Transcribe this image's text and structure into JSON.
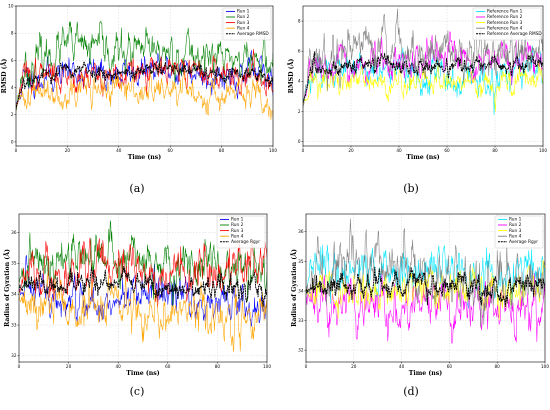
{
  "chart_data": [
    {
      "id": "a",
      "panel_label": "(a)",
      "type": "line",
      "xlabel": "Time (ns)",
      "ylabel": "RMSD (Å)",
      "xlim": [
        0,
        100
      ],
      "ylim": [
        -0.3,
        10
      ],
      "xticks": [
        0,
        20,
        40,
        60,
        80,
        100
      ],
      "yticks": [
        0,
        2,
        4,
        6,
        8,
        10
      ],
      "grid": true,
      "legend_position": "top-right",
      "series": [
        {
          "name": "Run 1",
          "color": "#0000ff",
          "init": 2.5,
          "mean": 5.0,
          "noise": 0.6,
          "seed": 11,
          "samples": [
            [
              5,
              4.6
            ],
            [
              20,
              5.2
            ],
            [
              40,
              5.0
            ],
            [
              60,
              5.3
            ],
            [
              80,
              5.0
            ],
            [
              100,
              4.9
            ]
          ]
        },
        {
          "name": "Run 2",
          "color": "#008000",
          "init": 2.5,
          "mean": 6.3,
          "noise": 0.8,
          "seed": 23,
          "samples": [
            [
              5,
              5.6
            ],
            [
              20,
              7.0
            ],
            [
              40,
              6.5
            ],
            [
              60,
              6.6
            ],
            [
              80,
              6.2
            ],
            [
              100,
              5.8
            ]
          ]
        },
        {
          "name": "Run 3",
          "color": "#ff0000",
          "init": 2.5,
          "mean": 5.0,
          "noise": 0.6,
          "seed": 37,
          "samples": [
            [
              5,
              4.8
            ],
            [
              20,
              5.0
            ],
            [
              40,
              4.9
            ],
            [
              60,
              5.2
            ],
            [
              80,
              5.1
            ],
            [
              100,
              4.6
            ]
          ]
        },
        {
          "name": "Run 4",
          "color": "#ffa500",
          "init": 2.5,
          "mean": 3.6,
          "noise": 0.6,
          "seed": 41,
          "samples": [
            [
              5,
              3.5
            ],
            [
              20,
              4.0
            ],
            [
              40,
              3.8
            ],
            [
              60,
              3.7
            ],
            [
              80,
              3.5
            ],
            [
              100,
              3.2
            ]
          ]
        },
        {
          "name": "Average RMSD",
          "color": "#000000",
          "dashed": true,
          "init": 2.5,
          "mean": 5.0,
          "noise": 0.3,
          "seed": 53,
          "samples": [
            [
              5,
              4.6
            ],
            [
              20,
              5.3
            ],
            [
              40,
              5.1
            ],
            [
              60,
              5.3
            ],
            [
              80,
              5.0
            ],
            [
              100,
              4.8
            ]
          ]
        }
      ]
    },
    {
      "id": "b",
      "panel_label": "(b)",
      "type": "line",
      "xlabel": "Time (ns)",
      "ylabel": "RMSD (Å)",
      "xlim": [
        0,
        100
      ],
      "ylim": [
        -0.3,
        9
      ],
      "xticks": [
        0,
        20,
        40,
        60,
        80,
        100
      ],
      "yticks": [
        0,
        2,
        4,
        6,
        8
      ],
      "grid": true,
      "legend_position": "top-right",
      "series": [
        {
          "name": "Reference Run 1",
          "color": "#00e5ff",
          "init": 2.5,
          "mean": 4.6,
          "noise": 0.6,
          "seed": 61,
          "samples": [
            [
              5,
              4.4
            ],
            [
              20,
              5.0
            ],
            [
              40,
              4.8
            ],
            [
              60,
              4.3
            ],
            [
              80,
              4.0
            ],
            [
              100,
              4.8
            ]
          ]
        },
        {
          "name": "Reference Run 2",
          "color": "#ff00ff",
          "init": 2.5,
          "mean": 5.0,
          "noise": 0.6,
          "seed": 67,
          "samples": [
            [
              5,
              4.7
            ],
            [
              20,
              4.9
            ],
            [
              40,
              5.1
            ],
            [
              60,
              5.3
            ],
            [
              80,
              5.1
            ],
            [
              100,
              5.5
            ]
          ]
        },
        {
          "name": "Reference Run 3",
          "color": "#ffff00",
          "init": 2.5,
          "mean": 3.9,
          "noise": 0.5,
          "seed": 71,
          "samples": [
            [
              5,
              4.0
            ],
            [
              20,
              3.8
            ],
            [
              40,
              3.9
            ],
            [
              60,
              4.0
            ],
            [
              80,
              3.9
            ],
            [
              100,
              4.2
            ]
          ]
        },
        {
          "name": "Reference Run 4",
          "color": "#808080",
          "init": 2.5,
          "mean": 5.8,
          "noise": 0.8,
          "seed": 79,
          "samples": [
            [
              5,
              5.0
            ],
            [
              20,
              6.8
            ],
            [
              40,
              6.2
            ],
            [
              60,
              6.0
            ],
            [
              80,
              5.6
            ],
            [
              100,
              5.8
            ]
          ]
        },
        {
          "name": "Reference Average RMSD",
          "color": "#000000",
          "dashed": true,
          "init": 2.5,
          "mean": 4.9,
          "noise": 0.3,
          "seed": 83,
          "samples": [
            [
              5,
              4.6
            ],
            [
              20,
              5.2
            ],
            [
              40,
              5.0
            ],
            [
              60,
              5.0
            ],
            [
              80,
              5.0
            ],
            [
              100,
              5.3
            ]
          ]
        }
      ]
    },
    {
      "id": "c",
      "panel_label": "(c)",
      "type": "line",
      "xlabel": "Time (ns)",
      "ylabel": "Radius of Gyration (Å)",
      "xlim": [
        0,
        100
      ],
      "ylim": [
        31.8,
        36.6
      ],
      "xticks": [
        0,
        20,
        40,
        60,
        80,
        100
      ],
      "yticks": [
        32,
        33,
        34,
        35,
        36
      ],
      "grid": true,
      "legend_position": "top-right",
      "series": [
        {
          "name": "Run 1",
          "color": "#0000ff",
          "init": 34.0,
          "mean": 33.8,
          "noise": 0.35,
          "seed": 97,
          "samples": [
            [
              5,
              34.0
            ],
            [
              20,
              33.6
            ],
            [
              40,
              33.8
            ],
            [
              60,
              34.0
            ],
            [
              80,
              33.7
            ],
            [
              100,
              33.6
            ]
          ]
        },
        {
          "name": "Run 2",
          "color": "#008000",
          "init": 34.5,
          "mean": 35.1,
          "noise": 0.4,
          "seed": 101,
          "samples": [
            [
              5,
              34.8
            ],
            [
              20,
              35.3
            ],
            [
              40,
              35.2
            ],
            [
              60,
              35.0
            ],
            [
              80,
              34.9
            ],
            [
              100,
              34.9
            ]
          ]
        },
        {
          "name": "Run 3",
          "color": "#ff0000",
          "init": 34.3,
          "mean": 34.8,
          "noise": 0.4,
          "seed": 103,
          "samples": [
            [
              5,
              34.6
            ],
            [
              20,
              34.8
            ],
            [
              40,
              34.9
            ],
            [
              60,
              34.6
            ],
            [
              80,
              34.8
            ],
            [
              100,
              35.0
            ]
          ]
        },
        {
          "name": "Run 4",
          "color": "#ffa500",
          "init": 33.9,
          "mean": 33.5,
          "noise": 0.4,
          "seed": 107,
          "samples": [
            [
              5,
              33.7
            ],
            [
              20,
              33.5
            ],
            [
              40,
              33.6
            ],
            [
              60,
              33.3
            ],
            [
              80,
              33.4
            ],
            [
              100,
              33.2
            ]
          ]
        },
        {
          "name": "Average Rgyr",
          "color": "#000000",
          "dashed": true,
          "init": 34.2,
          "mean": 34.3,
          "noise": 0.2,
          "seed": 109,
          "samples": [
            [
              5,
              34.3
            ],
            [
              20,
              34.4
            ],
            [
              40,
              34.4
            ],
            [
              60,
              34.2
            ],
            [
              80,
              34.2
            ],
            [
              100,
              34.2
            ]
          ]
        }
      ]
    },
    {
      "id": "d",
      "panel_label": "(d)",
      "type": "line",
      "xlabel": "Time (ns)",
      "ylabel": "Radius of Gyration (Å)",
      "xlim": [
        0,
        100
      ],
      "ylim": [
        31.6,
        36.6
      ],
      "xticks": [
        0,
        20,
        40,
        60,
        80,
        100
      ],
      "yticks": [
        32,
        33,
        34,
        35,
        36
      ],
      "grid": true,
      "legend_position": "top-right",
      "series": [
        {
          "name": "Run 1",
          "color": "#00e5ff",
          "init": 34.0,
          "mean": 34.7,
          "noise": 0.4,
          "seed": 113,
          "samples": [
            [
              5,
              34.6
            ],
            [
              20,
              34.8
            ],
            [
              40,
              34.6
            ],
            [
              60,
              34.9
            ],
            [
              80,
              34.4
            ],
            [
              100,
              34.8
            ]
          ]
        },
        {
          "name": "Run 2",
          "color": "#ff00ff",
          "init": 33.8,
          "mean": 33.5,
          "noise": 0.45,
          "seed": 127,
          "samples": [
            [
              5,
              33.6
            ],
            [
              20,
              33.4
            ],
            [
              40,
              33.2
            ],
            [
              60,
              33.5
            ],
            [
              80,
              33.6
            ],
            [
              100,
              33.6
            ]
          ]
        },
        {
          "name": "Run 3",
          "color": "#ffff00",
          "init": 34.0,
          "mean": 34.0,
          "noise": 0.35,
          "seed": 131,
          "samples": [
            [
              5,
              34.0
            ],
            [
              20,
              33.9
            ],
            [
              40,
              34.0
            ],
            [
              60,
              34.1
            ],
            [
              80,
              33.9
            ],
            [
              100,
              34.0
            ]
          ]
        },
        {
          "name": "Run 4",
          "color": "#808080",
          "init": 34.0,
          "mean": 34.6,
          "noise": 0.5,
          "seed": 137,
          "samples": [
            [
              5,
              34.5
            ],
            [
              20,
              35.2
            ],
            [
              40,
              34.8
            ],
            [
              60,
              34.3
            ],
            [
              80,
              34.2
            ],
            [
              100,
              34.6
            ]
          ]
        },
        {
          "name": "Average Rgyr",
          "color": "#000000",
          "dashed": true,
          "init": 34.0,
          "mean": 34.2,
          "noise": 0.2,
          "seed": 139,
          "samples": [
            [
              5,
              34.1
            ],
            [
              20,
              34.3
            ],
            [
              40,
              34.2
            ],
            [
              60,
              34.2
            ],
            [
              80,
              34.0
            ],
            [
              100,
              34.3
            ]
          ]
        }
      ]
    }
  ]
}
